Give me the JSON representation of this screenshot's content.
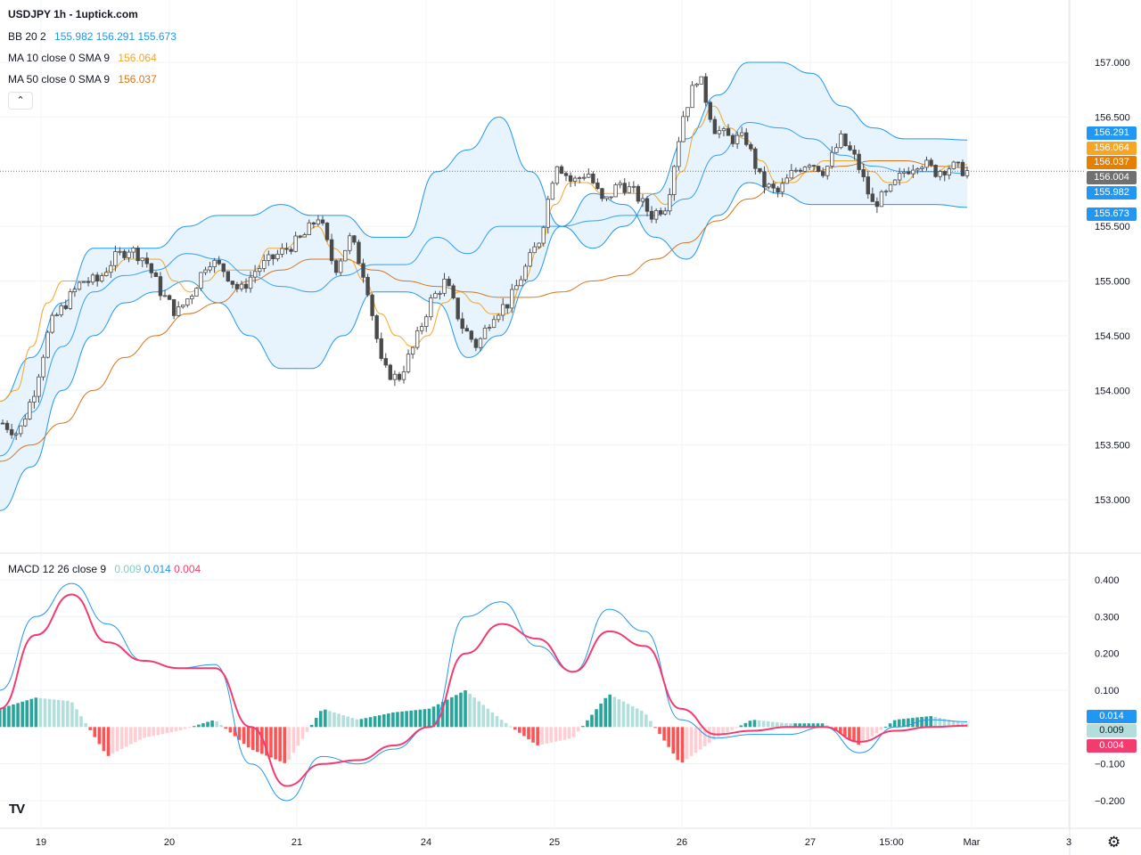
{
  "header": {
    "symbol": "USDJPY 1h - 1uptick.com",
    "bb": {
      "label": "BB 20 2",
      "basis": "155.982",
      "upper": "156.291",
      "lower": "155.673"
    },
    "ma10": {
      "label": "MA 10 close 0 SMA 9",
      "value": "156.064"
    },
    "ma50": {
      "label": "MA 50 close 0 SMA 9",
      "value": "156.037"
    },
    "collapse_glyph": "⌃"
  },
  "macd_legend": {
    "label": "MACD 12 26 close 9",
    "hist": "0.009",
    "macd": "0.014",
    "signal": "0.004"
  },
  "price_tags": [
    {
      "text": "156.291",
      "value": 156.291,
      "color": "#2196f3"
    },
    {
      "text": "156.064",
      "value": 156.064,
      "color": "#f5a623"
    },
    {
      "text": "156.037",
      "value": 156.037,
      "color": "#e67e00"
    },
    {
      "text": "156.004",
      "value": 156.004,
      "color": "#707070"
    },
    {
      "text": "155.982",
      "value": 155.982,
      "color": "#2196f3"
    },
    {
      "text": "155.673",
      "value": 155.673,
      "color": "#2196f3"
    }
  ],
  "macd_tags": [
    {
      "text": "0.014",
      "value": 0.014,
      "color": "#2196f3"
    },
    {
      "text": "0.009",
      "value": 0.009,
      "color": "#b2dfdb"
    },
    {
      "text": "0.004",
      "value": 0.004,
      "color": "#f23c70"
    }
  ],
  "colors": {
    "bb_line": "#2196f3",
    "bb_fill": "#e3f2fd",
    "ma10": "#f5a623",
    "ma50": "#d9731a",
    "candle": "#4a4a4a",
    "macd": "#2196f3",
    "signal": "#f23c70",
    "hist_up_strong": "#26a69a",
    "hist_up_weak": "#b2dfdb",
    "hist_down_strong": "#ff5252",
    "hist_down_weak": "#ffcdd2"
  },
  "chart_data": [
    {
      "type": "candlestick",
      "title": "USDJPY 1h",
      "y_ticks": [
        "157.000",
        "156.500",
        "155.500",
        "155.000",
        "154.500",
        "154.000",
        "153.500",
        "153.000"
      ],
      "ylim": [
        152.35,
        157.5
      ],
      "x_ticks": [
        "19",
        "20",
        "21",
        "24",
        "25",
        "26",
        "27",
        "15:00",
        "Mar",
        "3"
      ],
      "last_price": 156.004,
      "close_path": [
        153.7,
        153.6,
        154.0,
        154.6,
        154.8,
        155.0,
        155.0,
        155.2,
        155.3,
        155.2,
        154.9,
        154.7,
        154.9,
        155.2,
        155.1,
        154.9,
        155.1,
        155.2,
        155.3,
        155.4,
        155.6,
        155.1,
        155.4,
        155.0,
        154.2,
        154.1,
        154.4,
        154.8,
        155.0,
        154.6,
        154.4,
        154.7,
        154.8,
        155.1,
        155.4,
        156.1,
        155.9,
        156.0,
        155.7,
        155.9,
        155.8,
        155.6,
        155.7,
        156.5,
        156.9,
        156.4,
        156.3,
        156.3,
        155.9,
        155.8,
        156.0,
        156.1,
        156.0,
        156.3,
        156.1,
        155.7,
        155.8,
        156.0,
        156.1,
        156.0,
        156.05,
        156.0
      ],
      "ma10_path": [
        153.9,
        154.0,
        154.4,
        154.8,
        155.0,
        155.0,
        155.0,
        155.1,
        155.2,
        155.2,
        155.2,
        155.0,
        154.9,
        155.0,
        155.1,
        155.1,
        155.1,
        155.3,
        155.3,
        155.4,
        155.5,
        155.3,
        155.2,
        155.0,
        154.7,
        154.5,
        154.4,
        154.5,
        154.8,
        154.9,
        154.8,
        154.7,
        154.7,
        155.0,
        155.3,
        155.7,
        155.9,
        155.9,
        155.8,
        155.8,
        155.8,
        155.8,
        155.7,
        156.0,
        156.4,
        156.6,
        156.4,
        156.3,
        156.1,
        155.9,
        155.9,
        156.0,
        156.1,
        156.1,
        156.1,
        156.0,
        155.9,
        155.9,
        156.0,
        156.0,
        156.06,
        156.064
      ],
      "ma50_path": [
        153.35,
        153.5,
        153.7,
        154.0,
        154.3,
        154.5,
        154.7,
        154.8,
        155.0,
        155.1,
        155.2,
        155.2,
        155.1,
        155.0,
        154.95,
        154.9,
        154.85,
        154.85,
        154.9,
        155.0,
        155.05,
        155.2,
        155.35,
        155.55,
        155.75,
        155.9,
        156.0,
        156.05,
        156.1,
        156.1,
        156.05,
        156.037
      ],
      "bb_upper_path": [
        153.9,
        154.3,
        154.8,
        155.3,
        155.3,
        155.3,
        155.5,
        155.6,
        155.6,
        155.7,
        155.6,
        155.6,
        155.4,
        155.4,
        156.0,
        156.2,
        156.5,
        156.0,
        155.5,
        155.3,
        155.5,
        155.8,
        156.3,
        156.7,
        157.0,
        157.0,
        156.9,
        156.6,
        156.4,
        156.3,
        156.3,
        156.29
      ],
      "bb_lower_path": [
        152.9,
        153.3,
        154.0,
        154.5,
        154.8,
        154.9,
        155.0,
        154.8,
        154.5,
        154.2,
        154.2,
        154.5,
        154.9,
        154.9,
        154.8,
        154.3,
        154.5,
        155.0,
        155.5,
        155.8,
        155.7,
        155.4,
        155.2,
        155.6,
        155.9,
        155.8,
        155.7,
        155.7,
        155.7,
        155.7,
        155.7,
        155.673
      ],
      "time_span_days": 8
    },
    {
      "type": "macd",
      "title": "MACD 12 26 close 9",
      "y_ticks": [
        "0.400",
        "0.300",
        "0.200",
        "0.100",
        "−0.100",
        "−0.200"
      ],
      "ylim": [
        -0.245,
        0.4
      ],
      "series": [
        {
          "name": "MACD",
          "values": [
            0.1,
            0.3,
            0.39,
            0.28,
            0.18,
            0.16,
            0.17,
            -0.1,
            -0.2,
            -0.08,
            -0.1,
            -0.06,
            0.0,
            0.3,
            0.34,
            0.22,
            0.15,
            0.32,
            0.26,
            0.02,
            -0.03,
            -0.02,
            -0.02,
            0.0,
            -0.07,
            0.0,
            0.02,
            0.014
          ]
        },
        {
          "name": "Signal",
          "values": [
            0.05,
            0.25,
            0.36,
            0.23,
            0.18,
            0.16,
            0.16,
            0.0,
            -0.16,
            -0.1,
            -0.09,
            -0.05,
            0.0,
            0.2,
            0.28,
            0.24,
            0.15,
            0.26,
            0.22,
            0.05,
            -0.02,
            -0.01,
            0.0,
            0.0,
            -0.04,
            -0.01,
            0.0,
            0.004
          ]
        },
        {
          "name": "Histogram",
          "values": [
            0.05,
            0.08,
            0.07,
            -0.08,
            -0.03,
            -0.01,
            0.02,
            -0.06,
            -0.1,
            0.05,
            0.02,
            0.04,
            0.05,
            0.1,
            0.02,
            -0.05,
            -0.03,
            0.09,
            0.04,
            -0.1,
            -0.03,
            0.02,
            0.01,
            0.01,
            -0.05,
            0.02,
            0.03,
            0.009
          ]
        }
      ]
    }
  ]
}
